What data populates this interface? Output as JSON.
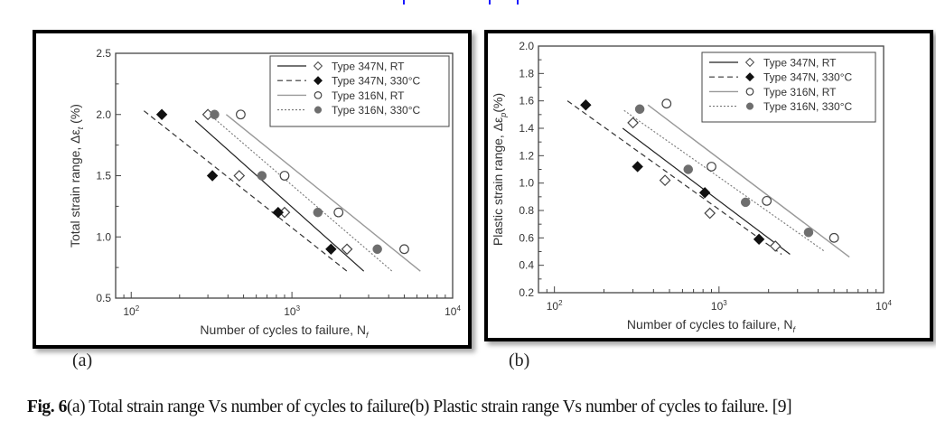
{
  "page": {
    "panel_labels": [
      "(a)",
      "(b)"
    ],
    "caption": {
      "fig_label": "Fig. 6",
      "text": "(a) Total strain range Vs number of cycles to failure(b) Plastic strain range Vs number of cycles to failure. [9]"
    },
    "colors": {
      "top_marks": "#1a1aff",
      "frame": "#000000"
    }
  },
  "legend": {
    "placement": "top-right",
    "entries": [
      {
        "label": "Type 347N, RT",
        "line": "solid-dark",
        "marker": "open-diamond"
      },
      {
        "label": "Type 347N, 330°C",
        "line": "dashed-dark",
        "marker": "filled-diamond"
      },
      {
        "label": "Type 316N, RT",
        "line": "solid-light",
        "marker": "open-circle"
      },
      {
        "label": "Type 316N, 330°C",
        "line": "dotted-light",
        "marker": "filled-circle"
      }
    ]
  },
  "chart_data": [
    {
      "type": "scatter",
      "panel": "(a)",
      "title": "",
      "xlabel": "Number of cycles to failure, N",
      "xlabel_sub": "f",
      "ylabel": "Total strain range, Δε",
      "ylabel_sub": "t",
      "ylabel_unit": " (%)",
      "xscale": "log",
      "xlim": [
        80,
        10000
      ],
      "ylim": [
        0.5,
        2.5
      ],
      "xticks": [
        {
          "v": 100,
          "base": "10",
          "exp": "2"
        },
        {
          "v": 1000,
          "base": "10",
          "exp": "3"
        },
        {
          "v": 10000,
          "base": "10",
          "exp": "4"
        }
      ],
      "yticks": [
        "0.5",
        "1.0",
        "1.5",
        "2.0",
        "2.5"
      ],
      "yminor": [
        0.75,
        1.25,
        1.75,
        2.25
      ],
      "grid": false,
      "series": [
        {
          "name": "Type 347N, RT",
          "marker": "open-diamond",
          "points": [
            [
              300,
              2.0
            ],
            [
              470,
              1.5
            ],
            [
              900,
              1.2
            ],
            [
              2200,
              0.9
            ]
          ],
          "fit": [
            [
              250,
              1.95
            ],
            [
              2800,
              0.72
            ]
          ]
        },
        {
          "name": "Type 347N, 330°C",
          "marker": "filled-diamond",
          "points": [
            [
              155,
              2.0
            ],
            [
              320,
              1.5
            ],
            [
              820,
              1.2
            ],
            [
              1750,
              0.9
            ]
          ],
          "fit": [
            [
              120,
              2.03
            ],
            [
              2200,
              0.72
            ]
          ]
        },
        {
          "name": "Type 316N, RT",
          "marker": "open-circle",
          "points": [
            [
              480,
              2.0
            ],
            [
              900,
              1.5
            ],
            [
              1950,
              1.2
            ],
            [
              5000,
              0.9
            ]
          ],
          "fit": [
            [
              390,
              2.0
            ],
            [
              6300,
              0.72
            ]
          ]
        },
        {
          "name": "Type 316N, 330°C",
          "marker": "filled-circle",
          "points": [
            [
              330,
              2.0
            ],
            [
              650,
              1.5
            ],
            [
              1450,
              1.2
            ],
            [
              3400,
              0.9
            ]
          ],
          "fit": [
            [
              295,
              2.02
            ],
            [
              4200,
              0.72
            ]
          ]
        }
      ]
    },
    {
      "type": "scatter",
      "panel": "(b)",
      "title": "",
      "xlabel": "Number of cycles to failure, N",
      "xlabel_sub": "f",
      "ylabel": "Plastic strain range, Δε",
      "ylabel_sub": "p",
      "ylabel_unit": "(%)",
      "xscale": "log",
      "xlim": [
        80,
        10000
      ],
      "ylim": [
        0.2,
        2.0
      ],
      "xticks": [
        {
          "v": 100,
          "base": "10",
          "exp": "2"
        },
        {
          "v": 1000,
          "base": "10",
          "exp": "3"
        },
        {
          "v": 10000,
          "base": "10",
          "exp": "4"
        }
      ],
      "yticks": [
        "0.2",
        "0.4",
        "0.6",
        "0.8",
        "1.0",
        "1.2",
        "1.4",
        "1.6",
        "1.8",
        "2.0"
      ],
      "yminor": [
        0.3,
        0.5,
        0.7,
        0.9,
        1.1,
        1.3,
        1.5,
        1.7,
        1.9
      ],
      "grid": false,
      "series": [
        {
          "name": "Type 347N, RT",
          "marker": "open-diamond",
          "points": [
            [
              300,
              1.44
            ],
            [
              470,
              1.02
            ],
            [
              880,
              0.78
            ],
            [
              2200,
              0.54
            ]
          ],
          "fit": [
            [
              260,
              1.4
            ],
            [
              2700,
              0.48
            ]
          ]
        },
        {
          "name": "Type 347N, 330°C",
          "marker": "filled-diamond",
          "points": [
            [
              155,
              1.57
            ],
            [
              320,
              1.12
            ],
            [
              820,
              0.93
            ],
            [
              1750,
              0.59
            ]
          ],
          "fit": [
            [
              120,
              1.6
            ],
            [
              2400,
              0.48
            ]
          ]
        },
        {
          "name": "Type 316N, RT",
          "marker": "open-circle",
          "points": [
            [
              480,
              1.58
            ],
            [
              900,
              1.12
            ],
            [
              1950,
              0.87
            ],
            [
              5000,
              0.6
            ]
          ],
          "fit": [
            [
              370,
              1.57
            ],
            [
              6200,
              0.46
            ]
          ]
        },
        {
          "name": "Type 316N, 330°C",
          "marker": "filled-circle",
          "points": [
            [
              330,
              1.54
            ],
            [
              650,
              1.1
            ],
            [
              1450,
              0.86
            ],
            [
              3500,
              0.64
            ]
          ],
          "fit": [
            [
              265,
              1.53
            ],
            [
              4400,
              0.5
            ]
          ]
        }
      ]
    }
  ]
}
